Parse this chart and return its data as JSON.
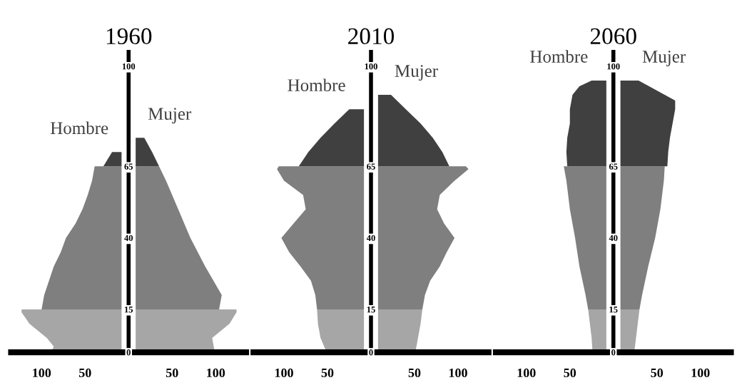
{
  "chart_data": [
    {
      "type": "area",
      "orientation": "horizontal",
      "title": "1960",
      "xlim": [
        -135,
        135
      ],
      "ylim": [
        0,
        105
      ],
      "xticks": [
        {
          "value": -100,
          "label": "100"
        },
        {
          "value": -50,
          "label": "50"
        },
        {
          "value": 50,
          "label": "50"
        },
        {
          "value": 100,
          "label": "100"
        }
      ],
      "yticks": [
        0,
        15,
        40,
        65,
        100
      ],
      "series": [
        {
          "color": "#a6a6a6",
          "x": [
            0,
            2,
            5,
            10,
            14,
            15
          ],
          "values": [
            -89,
            -86,
            -94,
            -114,
            -123,
            -123
          ]
        },
        {
          "color": "#7f7f7f",
          "x": [
            15,
            20,
            30,
            35,
            40,
            45,
            50,
            55,
            60,
            65
          ],
          "values": [
            -100,
            -97,
            -86,
            -78,
            -72,
            -61,
            -53,
            -47,
            -42,
            -39
          ]
        },
        {
          "name": "Hombre",
          "color": "#404040",
          "x": [
            65,
            70
          ],
          "values": [
            -29,
            -19
          ]
        },
        {
          "color": "#a6a6a6",
          "x": [
            0,
            5,
            10,
            14,
            15
          ],
          "values": [
            99,
            96,
            116,
            124,
            124
          ]
        },
        {
          "color": "#7f7f7f",
          "x": [
            15,
            20,
            30,
            40,
            50,
            60,
            65
          ],
          "values": [
            104,
            107,
            88,
            71,
            57,
            43,
            35
          ]
        },
        {
          "name": "Mujer",
          "color": "#404040",
          "x": [
            65,
            70,
            75
          ],
          "values": [
            35,
            27,
            18
          ]
        }
      ]
    },
    {
      "type": "area",
      "orientation": "horizontal",
      "title": "2010",
      "xlim": [
        -135,
        135
      ],
      "ylim": [
        0,
        105
      ],
      "xticks": [
        {
          "value": -100,
          "label": "100"
        },
        {
          "value": -50,
          "label": "50"
        },
        {
          "value": 50,
          "label": "50"
        },
        {
          "value": 100,
          "label": "100"
        }
      ],
      "yticks": [
        0,
        15,
        40,
        65,
        100
      ],
      "series": [
        {
          "color": "#a6a6a6",
          "x": [
            0,
            5,
            10,
            15
          ],
          "values": [
            -51,
            -58,
            -61,
            -62
          ]
        },
        {
          "color": "#7f7f7f",
          "x": [
            15,
            20,
            25,
            30,
            35,
            40,
            45,
            50,
            55,
            60,
            64,
            65
          ],
          "values": [
            -62,
            -64,
            -69,
            -81,
            -94,
            -103,
            -89,
            -75,
            -78,
            -100,
            -108,
            -106
          ]
        },
        {
          "name": "Hombre",
          "color": "#404040",
          "x": [
            65,
            70,
            75,
            80,
            85
          ],
          "values": [
            -83,
            -72,
            -58,
            -42,
            -25
          ]
        },
        {
          "color": "#a6a6a6",
          "x": [
            0,
            5,
            10,
            15
          ],
          "values": [
            51,
            54,
            57,
            59
          ]
        },
        {
          "color": "#7f7f7f",
          "x": [
            15,
            20,
            25,
            30,
            35,
            40,
            45,
            50,
            55,
            60,
            64,
            65
          ],
          "values": [
            59,
            62,
            68,
            79,
            87,
            96,
            84,
            76,
            79,
            96,
            112,
            109
          ]
        },
        {
          "name": "Mujer",
          "color": "#404040",
          "x": [
            65,
            70,
            75,
            80,
            85,
            90
          ],
          "values": [
            90,
            82,
            71,
            57,
            40,
            23
          ]
        }
      ]
    },
    {
      "type": "area",
      "orientation": "horizontal",
      "title": "2060",
      "xlim": [
        -135,
        135
      ],
      "ylim": [
        0,
        105
      ],
      "xticks": [
        {
          "value": -100,
          "label": "100"
        },
        {
          "value": -50,
          "label": "50"
        },
        {
          "value": 50,
          "label": "50"
        },
        {
          "value": 100,
          "label": "100"
        }
      ],
      "yticks": [
        0,
        15,
        40,
        65,
        100
      ],
      "series": [
        {
          "color": "#a6a6a6",
          "x": [
            0,
            5,
            10,
            15
          ],
          "values": [
            -24,
            -25,
            -27,
            -29
          ]
        },
        {
          "color": "#7f7f7f",
          "x": [
            15,
            20,
            30,
            40,
            50,
            60,
            65
          ],
          "values": [
            -29,
            -32,
            -39,
            -44,
            -50,
            -54,
            -57
          ]
        },
        {
          "name": "Hombre",
          "color": "#404040",
          "x": [
            65,
            70,
            75,
            80,
            85,
            90,
            93,
            95
          ],
          "values": [
            -53,
            -54,
            -53,
            -50,
            -50,
            -47,
            -39,
            -25
          ]
        },
        {
          "color": "#a6a6a6",
          "x": [
            0,
            5,
            10,
            15
          ],
          "values": [
            24,
            26,
            28,
            30
          ]
        },
        {
          "color": "#7f7f7f",
          "x": [
            15,
            20,
            30,
            40,
            50,
            60,
            65
          ],
          "values": [
            30,
            33,
            40,
            48,
            54,
            58,
            59
          ]
        },
        {
          "name": "Mujer",
          "color": "#404040",
          "x": [
            65,
            70,
            75,
            80,
            85,
            88,
            90,
            95
          ],
          "values": [
            62,
            63,
            65,
            68,
            71,
            71,
            59,
            29
          ]
        }
      ]
    }
  ]
}
